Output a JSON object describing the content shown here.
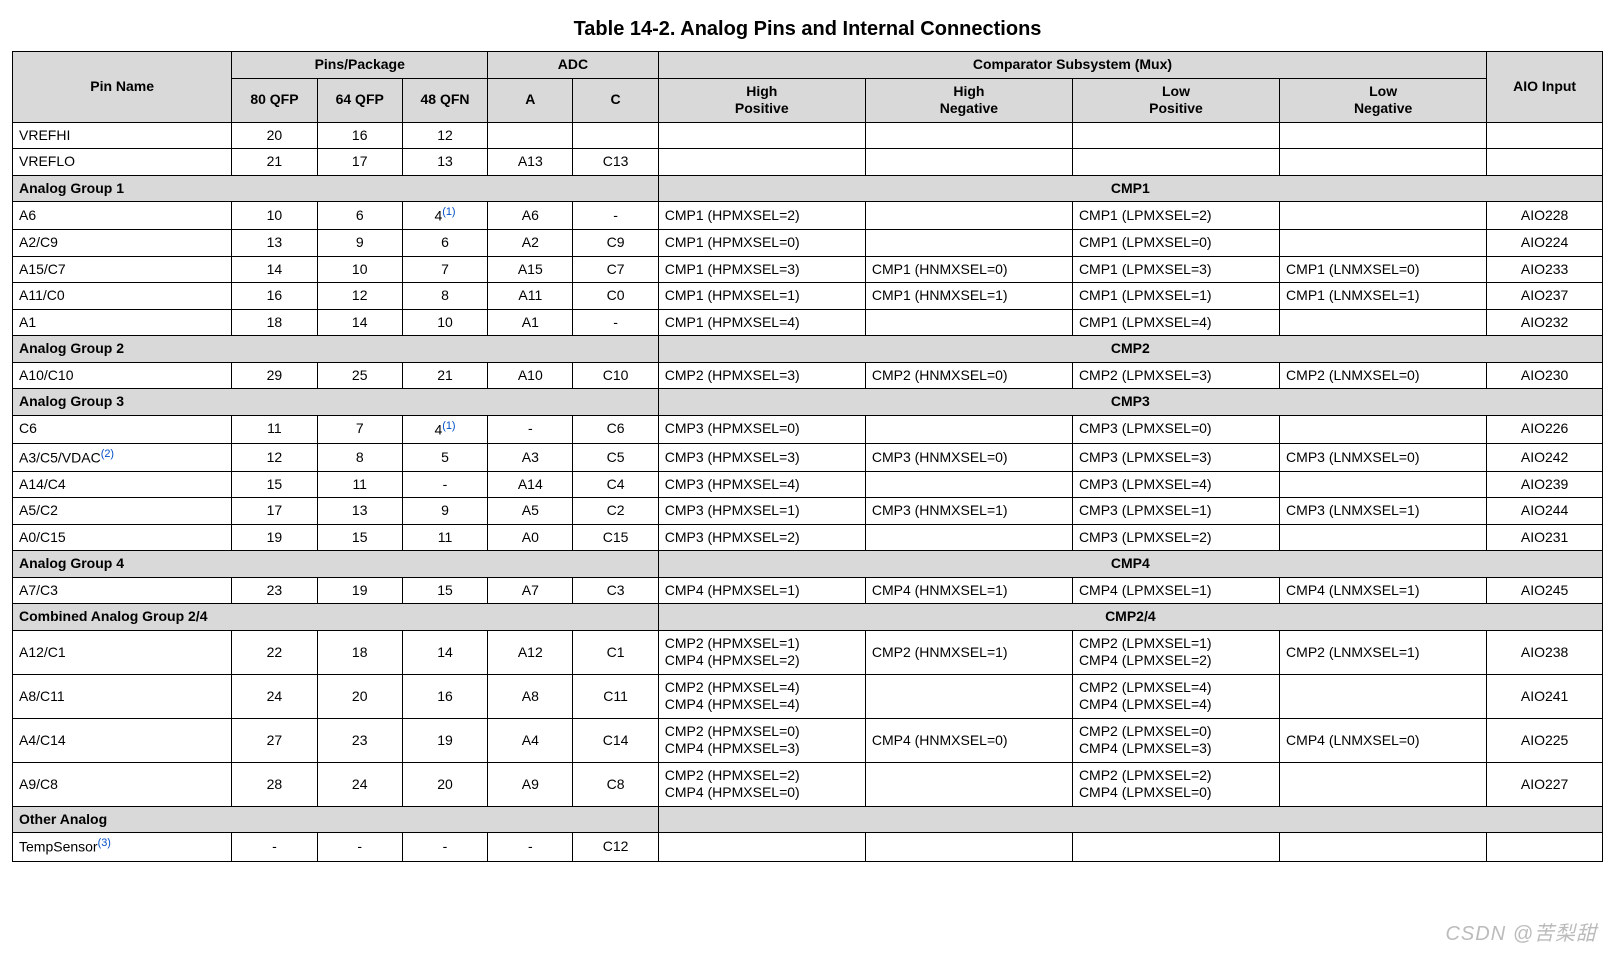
{
  "title": "Table 14-2. Analog Pins and Internal Connections",
  "watermark": "CSDN @苦梨甜",
  "colors": {
    "header_bg": "#d9d9d9",
    "border": "#000000",
    "sup": "#0050c8"
  },
  "headers": {
    "pin_name": "Pin Name",
    "pins_package": "Pins/Package",
    "pkg80": "80 QFP",
    "pkg64": "64 QFP",
    "pkg48": "48 QFN",
    "adc": "ADC",
    "adcA": "A",
    "adcC": "C",
    "cmp": "Comparator Subsystem (Mux)",
    "hp": "High\nPositive",
    "hn": "High\nNegative",
    "lp": "Low\nPositive",
    "ln": "Low\nNegative",
    "aio": "AIO Input"
  },
  "rows": [
    {
      "type": "data",
      "pin": "VREFHI",
      "p80": "20",
      "p64": "16",
      "p48": "12",
      "adcA": "",
      "adcC": "",
      "hp": "",
      "hn": "",
      "lp": "",
      "ln": "",
      "aio": ""
    },
    {
      "type": "data",
      "pin": "VREFLO",
      "p80": "21",
      "p64": "17",
      "p48": "13",
      "adcA": "A13",
      "adcC": "C13",
      "hp": "",
      "hn": "",
      "lp": "",
      "ln": "",
      "aio": ""
    },
    {
      "type": "group",
      "left": "Analog Group 1",
      "right": "CMP1"
    },
    {
      "type": "data",
      "pin": "A6",
      "p80": "10",
      "p64": "6",
      "p48": "4",
      "p48_sup": "(1)",
      "adcA": "A6",
      "adcC": "-",
      "hp": "CMP1 (HPMXSEL=2)",
      "hn": "",
      "lp": "CMP1 (LPMXSEL=2)",
      "ln": "",
      "aio": "AIO228"
    },
    {
      "type": "data",
      "pin": "A2/C9",
      "p80": "13",
      "p64": "9",
      "p48": "6",
      "adcA": "A2",
      "adcC": "C9",
      "hp": "CMP1 (HPMXSEL=0)",
      "hn": "",
      "lp": "CMP1 (LPMXSEL=0)",
      "ln": "",
      "aio": "AIO224"
    },
    {
      "type": "data",
      "pin": "A15/C7",
      "p80": "14",
      "p64": "10",
      "p48": "7",
      "adcA": "A15",
      "adcC": "C7",
      "hp": "CMP1 (HPMXSEL=3)",
      "hn": "CMP1 (HNMXSEL=0)",
      "lp": "CMP1 (LPMXSEL=3)",
      "ln": "CMP1 (LNMXSEL=0)",
      "aio": "AIO233"
    },
    {
      "type": "data",
      "pin": "A11/C0",
      "p80": "16",
      "p64": "12",
      "p48": "8",
      "adcA": "A11",
      "adcC": "C0",
      "hp": "CMP1 (HPMXSEL=1)",
      "hn": "CMP1 (HNMXSEL=1)",
      "lp": "CMP1 (LPMXSEL=1)",
      "ln": "CMP1 (LNMXSEL=1)",
      "aio": "AIO237"
    },
    {
      "type": "data",
      "pin": "A1",
      "p80": "18",
      "p64": "14",
      "p48": "10",
      "adcA": "A1",
      "adcC": "-",
      "hp": "CMP1 (HPMXSEL=4)",
      "hn": "",
      "lp": "CMP1 (LPMXSEL=4)",
      "ln": "",
      "aio": "AIO232"
    },
    {
      "type": "group",
      "left": "Analog Group 2",
      "right": "CMP2"
    },
    {
      "type": "data",
      "pin": "A10/C10",
      "p80": "29",
      "p64": "25",
      "p48": "21",
      "adcA": "A10",
      "adcC": "C10",
      "hp": "CMP2 (HPMXSEL=3)",
      "hn": "CMP2 (HNMXSEL=0)",
      "lp": "CMP2 (LPMXSEL=3)",
      "ln": "CMP2 (LNMXSEL=0)",
      "aio": "AIO230"
    },
    {
      "type": "group",
      "left": "Analog Group 3",
      "right": "CMP3"
    },
    {
      "type": "data",
      "pin": "C6",
      "p80": "11",
      "p64": "7",
      "p48": "4",
      "p48_sup": "(1)",
      "adcA": "-",
      "adcC": "C6",
      "hp": "CMP3 (HPMXSEL=0)",
      "hn": "",
      "lp": "CMP3 (LPMXSEL=0)",
      "ln": "",
      "aio": "AIO226"
    },
    {
      "type": "data",
      "pin": "A3/C5/VDAC",
      "pin_sup": "(2)",
      "p80": "12",
      "p64": "8",
      "p48": "5",
      "adcA": "A3",
      "adcC": "C5",
      "hp": "CMP3 (HPMXSEL=3)",
      "hn": "CMP3 (HNMXSEL=0)",
      "lp": "CMP3 (LPMXSEL=3)",
      "ln": "CMP3 (LNMXSEL=0)",
      "aio": "AIO242"
    },
    {
      "type": "data",
      "pin": "A14/C4",
      "p80": "15",
      "p64": "11",
      "p48": "-",
      "adcA": "A14",
      "adcC": "C4",
      "hp": "CMP3 (HPMXSEL=4)",
      "hn": "",
      "lp": "CMP3 (LPMXSEL=4)",
      "ln": "",
      "aio": "AIO239"
    },
    {
      "type": "data",
      "pin": "A5/C2",
      "p80": "17",
      "p64": "13",
      "p48": "9",
      "adcA": "A5",
      "adcC": "C2",
      "hp": "CMP3 (HPMXSEL=1)",
      "hn": "CMP3 (HNMXSEL=1)",
      "lp": "CMP3 (LPMXSEL=1)",
      "ln": "CMP3 (LNMXSEL=1)",
      "aio": "AIO244"
    },
    {
      "type": "data",
      "pin": "A0/C15",
      "p80": "19",
      "p64": "15",
      "p48": "11",
      "adcA": "A0",
      "adcC": "C15",
      "hp": "CMP3 (HPMXSEL=2)",
      "hn": "",
      "lp": "CMP3 (LPMXSEL=2)",
      "ln": "",
      "aio": "AIO231"
    },
    {
      "type": "group",
      "left": "Analog Group 4",
      "right": "CMP4"
    },
    {
      "type": "data",
      "pin": "A7/C3",
      "p80": "23",
      "p64": "19",
      "p48": "15",
      "adcA": "A7",
      "adcC": "C3",
      "hp": "CMP4 (HPMXSEL=1)",
      "hn": "CMP4 (HNMXSEL=1)",
      "lp": "CMP4 (LPMXSEL=1)",
      "ln": "CMP4 (LNMXSEL=1)",
      "aio": "AIO245"
    },
    {
      "type": "group",
      "left": "Combined Analog Group 2/4",
      "right": "CMP2/4"
    },
    {
      "type": "data",
      "pin": "A12/C1",
      "p80": "22",
      "p64": "18",
      "p48": "14",
      "adcA": "A12",
      "adcC": "C1",
      "hp": "CMP2 (HPMXSEL=1)\nCMP4 (HPMXSEL=2)",
      "hn": "CMP2 (HNMXSEL=1)",
      "lp": "CMP2 (LPMXSEL=1)\nCMP4 (LPMXSEL=2)",
      "ln": "CMP2 (LNMXSEL=1)",
      "aio": "AIO238"
    },
    {
      "type": "data",
      "pin": "A8/C11",
      "p80": "24",
      "p64": "20",
      "p48": "16",
      "adcA": "A8",
      "adcC": "C11",
      "hp": "CMP2 (HPMXSEL=4)\nCMP4 (HPMXSEL=4)",
      "hn": "",
      "lp": "CMP2 (LPMXSEL=4)\nCMP4 (LPMXSEL=4)",
      "ln": "",
      "aio": "AIO241"
    },
    {
      "type": "data",
      "pin": "A4/C14",
      "p80": "27",
      "p64": "23",
      "p48": "19",
      "adcA": "A4",
      "adcC": "C14",
      "hp": "CMP2 (HPMXSEL=0)\nCMP4 (HPMXSEL=3)",
      "hn": "CMP4 (HNMXSEL=0)",
      "lp": "CMP2 (LPMXSEL=0)\nCMP4 (LPMXSEL=3)",
      "ln": "CMP4 (LNMXSEL=0)",
      "aio": "AIO225"
    },
    {
      "type": "data",
      "pin": "A9/C8",
      "p80": "28",
      "p64": "24",
      "p48": "20",
      "adcA": "A9",
      "adcC": "C8",
      "hp": "CMP2 (HPMXSEL=2)\nCMP4 (HPMXSEL=0)",
      "hn": "",
      "lp": "CMP2 (LPMXSEL=2)\nCMP4 (LPMXSEL=0)",
      "ln": "",
      "aio": "AIO227"
    },
    {
      "type": "group",
      "left": "Other Analog",
      "right": ""
    },
    {
      "type": "data",
      "pin": "TempSensor",
      "pin_sup": "(3)",
      "p80": "-",
      "p64": "-",
      "p48": "-",
      "adcA": "-",
      "adcC": "C12",
      "hp": "",
      "hn": "",
      "lp": "",
      "ln": "",
      "aio": ""
    }
  ]
}
